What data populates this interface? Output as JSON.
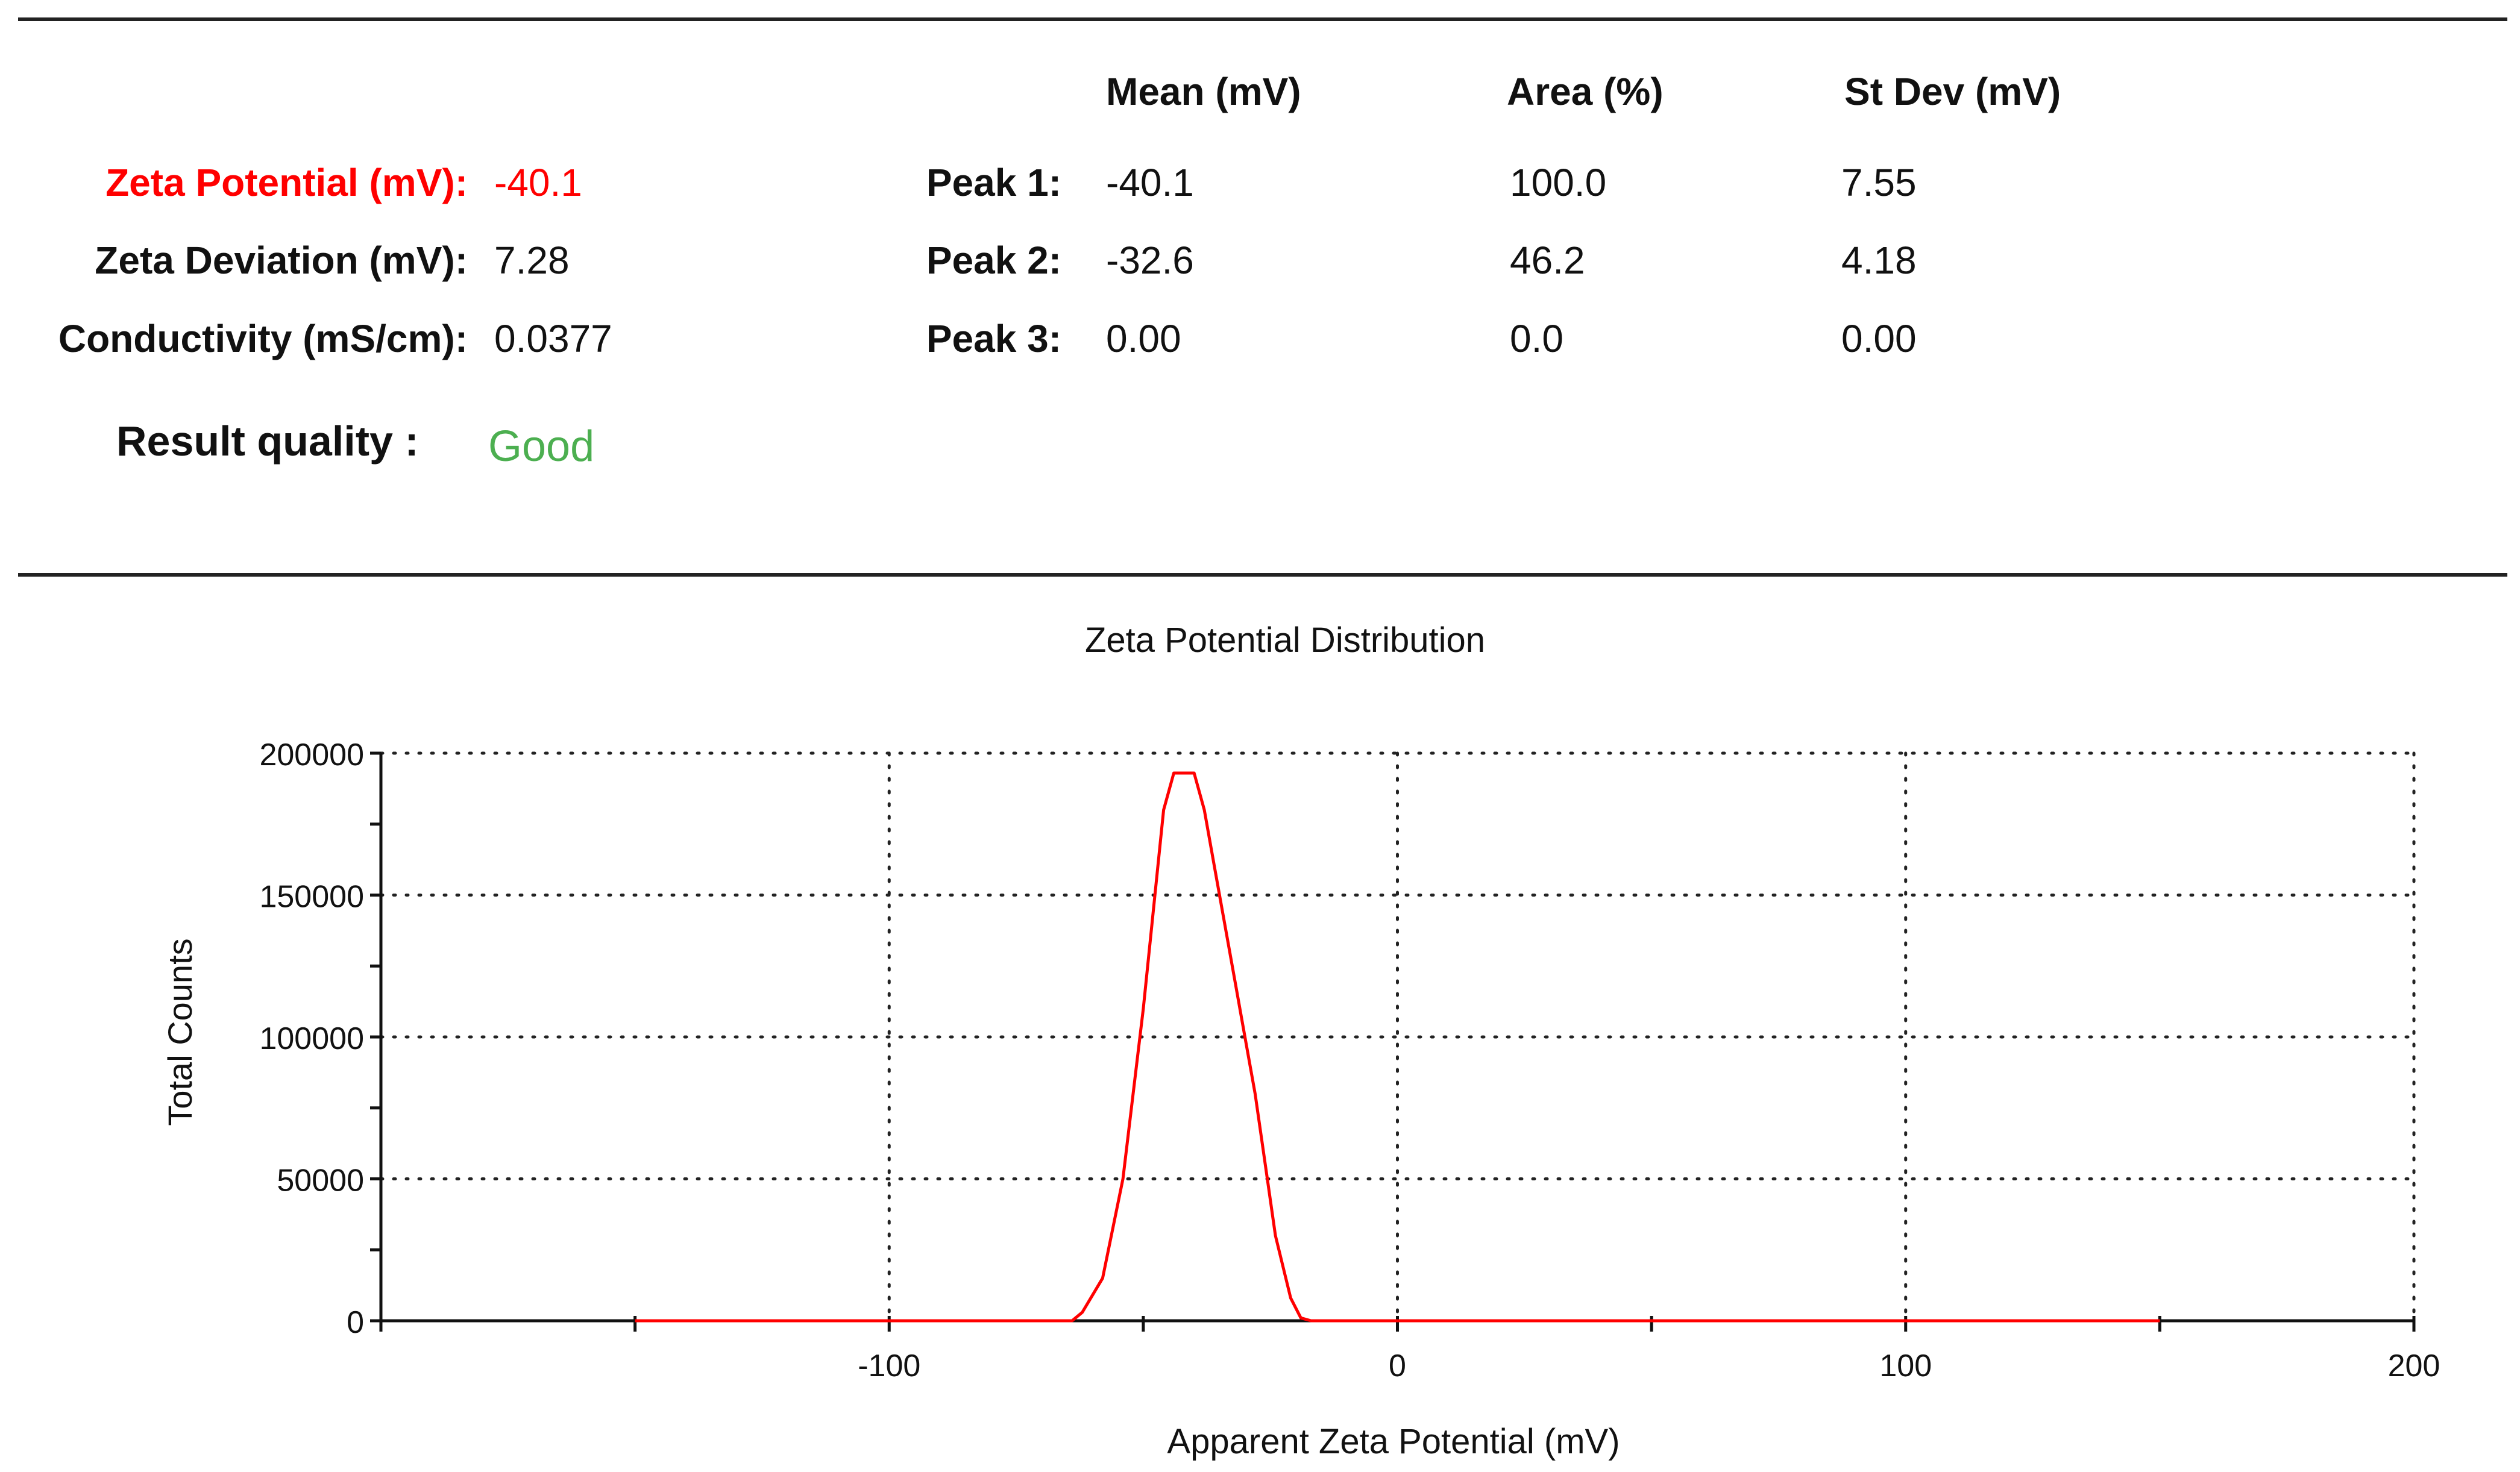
{
  "summary": {
    "rows": [
      {
        "label": "Zeta Potential (mV):",
        "value": "-40.1"
      },
      {
        "label": "Zeta Deviation (mV):",
        "value": "7.28"
      },
      {
        "label": "Conductivity (mS/cm):",
        "value": "0.0377"
      }
    ],
    "quality_label": "Result quality :",
    "quality_value": "Good"
  },
  "peaks": {
    "headers": {
      "mean": "Mean (mV)",
      "area": "Area (%)",
      "stdev": "St Dev (mV)"
    },
    "rows": [
      {
        "label": "Peak 1:",
        "mean": "-40.1",
        "area": "100.0",
        "stdev": "7.55"
      },
      {
        "label": "Peak 2:",
        "mean": "-32.6",
        "area": "46.2",
        "stdev": "4.18"
      },
      {
        "label": "Peak 3:",
        "mean": "0.00",
        "area": "0.0",
        "stdev": "0.00"
      }
    ]
  },
  "colors": {
    "highlight": "#ff0000",
    "quality_good": "#4caf50",
    "series": "#ff0000",
    "axis": "#111111"
  },
  "chart_data": {
    "type": "line",
    "title": "Zeta Potential Distribution",
    "xlabel": "Apparent Zeta Potential (mV)",
    "ylabel": "Total Counts",
    "xlim": [
      -200,
      200
    ],
    "ylim": [
      0,
      200000
    ],
    "x_ticks": [
      -100,
      0,
      100,
      200
    ],
    "x_tick_labels": [
      "-100",
      "0",
      "100",
      "200"
    ],
    "y_ticks": [
      0,
      50000,
      100000,
      150000,
      200000
    ],
    "y_tick_labels": [
      "0",
      "50000",
      "100000",
      "150000",
      "200000"
    ],
    "grid": true,
    "series": [
      {
        "x": [
          -150,
          -100,
          -64,
          -62,
          -58,
          -54,
          -50,
          -46,
          -44,
          -42,
          -40,
          -38,
          -36,
          -34,
          -32,
          -30,
          -28,
          -26,
          -24,
          -21,
          -19,
          -17,
          0,
          50,
          100,
          150
        ],
        "y": [
          0,
          0,
          0,
          3000,
          15000,
          50000,
          110000,
          180000,
          193000,
          193000,
          193000,
          180000,
          160000,
          140000,
          120000,
          100000,
          80000,
          55000,
          30000,
          8000,
          1000,
          0,
          0,
          0,
          0,
          0
        ]
      }
    ]
  }
}
